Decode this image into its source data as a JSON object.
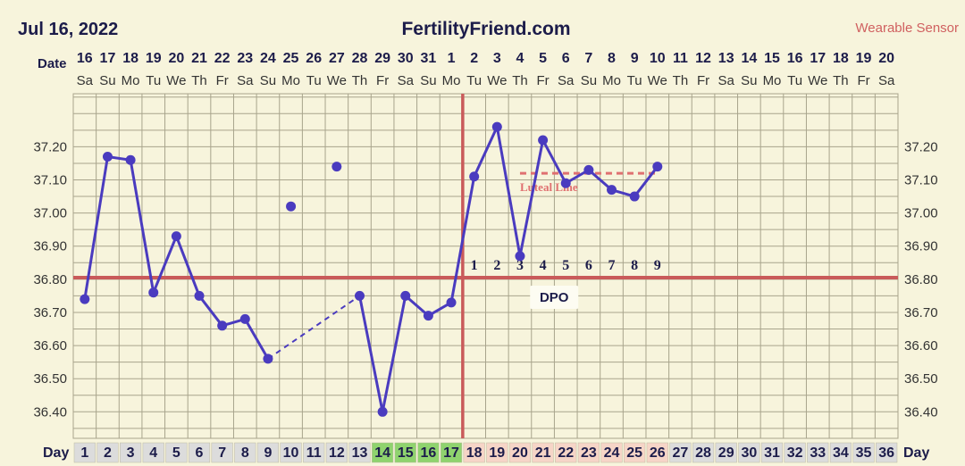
{
  "header": {
    "date": "Jul 16, 2022",
    "site": "FertilityFriend.com",
    "sensor": "Wearable Sensor"
  },
  "row_labels": {
    "date": "Date",
    "day": "Day"
  },
  "colors": {
    "background": "#f7f4dc",
    "grid": "#a8a48c",
    "temp_line": "#4a3bbf",
    "coverline": "#c95a5a",
    "ovulation_line": "#c95a5a",
    "luteal_line": "#e07070",
    "day_bg_default": "#dcdcdc",
    "day_bg_fertile": "#8fd36e",
    "day_bg_luteal": "#f6d5c7"
  },
  "chart_data": {
    "type": "line",
    "title": "",
    "dates": [
      "16",
      "17",
      "18",
      "19",
      "20",
      "21",
      "22",
      "23",
      "24",
      "25",
      "26",
      "27",
      "28",
      "29",
      "30",
      "31",
      "1",
      "2",
      "3",
      "4",
      "5",
      "6",
      "7",
      "8",
      "9",
      "10",
      "11",
      "12",
      "13",
      "14",
      "15",
      "16",
      "17",
      "18",
      "19",
      "20"
    ],
    "weekdays": [
      "Sa",
      "Su",
      "Mo",
      "Tu",
      "We",
      "Th",
      "Fr",
      "Sa",
      "Su",
      "Mo",
      "Tu",
      "We",
      "Th",
      "Fr",
      "Sa",
      "Su",
      "Mo",
      "Tu",
      "We",
      "Th",
      "Fr",
      "Sa",
      "Su",
      "Mo",
      "Tu",
      "We",
      "Th",
      "Fr",
      "Sa",
      "Su",
      "Mo",
      "Tu",
      "We",
      "Th",
      "Fr",
      "Sa"
    ],
    "cycle_days": [
      1,
      2,
      3,
      4,
      5,
      6,
      7,
      8,
      9,
      10,
      11,
      12,
      13,
      14,
      15,
      16,
      17,
      18,
      19,
      20,
      21,
      22,
      23,
      24,
      25,
      26,
      27,
      28,
      29,
      30,
      31,
      32,
      33,
      34,
      35,
      36
    ],
    "fertile_days": [
      14,
      15,
      16,
      17
    ],
    "luteal_days": [
      18,
      19,
      20,
      21,
      22,
      23,
      24,
      25,
      26
    ],
    "ylim": [
      36.32,
      37.36
    ],
    "yticks": [
      "37.20",
      "37.10",
      "37.00",
      "36.90",
      "36.80",
      "36.70",
      "36.60",
      "36.50",
      "36.40"
    ],
    "temps": [
      {
        "day": 1,
        "temp": 36.74
      },
      {
        "day": 2,
        "temp": 37.17
      },
      {
        "day": 3,
        "temp": 37.16
      },
      {
        "day": 4,
        "temp": 36.76
      },
      {
        "day": 5,
        "temp": 36.93
      },
      {
        "day": 6,
        "temp": 36.75
      },
      {
        "day": 7,
        "temp": 36.66
      },
      {
        "day": 8,
        "temp": 36.68
      },
      {
        "day": 9,
        "temp": 36.56
      },
      {
        "day": 10,
        "temp": 37.02,
        "discarded": true
      },
      {
        "day": 12,
        "temp": 37.14,
        "discarded": true
      },
      {
        "day": 13,
        "temp": 36.75
      },
      {
        "day": 14,
        "temp": 36.4
      },
      {
        "day": 15,
        "temp": 36.75
      },
      {
        "day": 16,
        "temp": 36.69
      },
      {
        "day": 17,
        "temp": 36.73
      },
      {
        "day": 18,
        "temp": 37.11
      },
      {
        "day": 19,
        "temp": 37.26
      },
      {
        "day": 20,
        "temp": 36.87
      },
      {
        "day": 21,
        "temp": 37.22
      },
      {
        "day": 22,
        "temp": 37.09
      },
      {
        "day": 23,
        "temp": 37.13
      },
      {
        "day": 24,
        "temp": 37.07
      },
      {
        "day": 25,
        "temp": 37.05
      },
      {
        "day": 26,
        "temp": 37.14
      }
    ],
    "coverline": 36.805,
    "ovulation_day": 17,
    "luteal_line": {
      "value": 37.12,
      "from_day": 20,
      "to_day": 26,
      "label": "Luteal Line"
    },
    "dpo": {
      "label": "DPO",
      "numbers": [
        "1",
        "2",
        "3",
        "4",
        "5",
        "6",
        "7",
        "8",
        "9"
      ],
      "start_day": 18
    }
  }
}
